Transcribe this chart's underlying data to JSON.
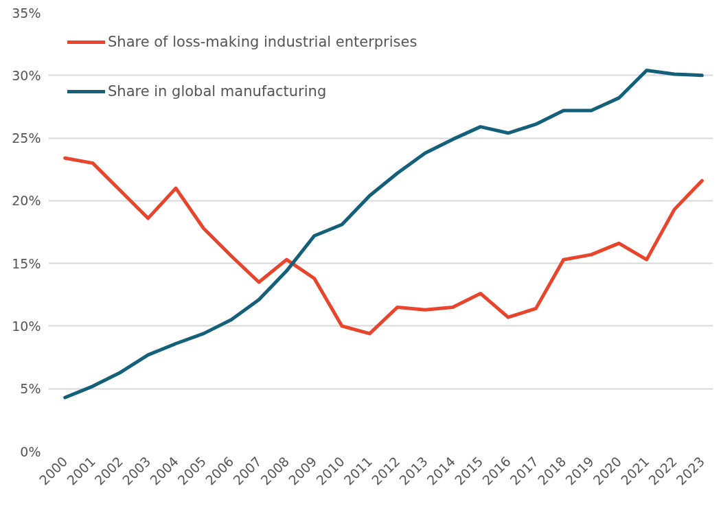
{
  "chart_data": {
    "type": "line",
    "categories": [
      "2000",
      "2001",
      "2002",
      "2003",
      "2004",
      "2005",
      "2006",
      "2007",
      "2008",
      "2009",
      "2010",
      "2011",
      "2012",
      "2013",
      "2014",
      "2015",
      "2016",
      "2017",
      "2018",
      "2019",
      "2020",
      "2021",
      "2022",
      "2023"
    ],
    "series": [
      {
        "name": "Share of loss-making industrial enterprises",
        "color": "#e8452c",
        "values": [
          23.4,
          23.0,
          20.8,
          18.6,
          21.0,
          17.8,
          15.6,
          13.5,
          15.3,
          13.8,
          10.0,
          9.4,
          11.5,
          11.3,
          11.5,
          12.6,
          10.7,
          11.4,
          15.3,
          15.7,
          16.6,
          15.3,
          19.3,
          21.6
        ]
      },
      {
        "name": "Share in global manufacturing",
        "color": "#14607a",
        "values": [
          4.3,
          5.2,
          6.3,
          7.7,
          8.6,
          9.4,
          10.5,
          12.1,
          14.4,
          17.2,
          18.1,
          20.4,
          22.2,
          23.8,
          24.9,
          25.9,
          25.4,
          26.1,
          27.2,
          27.2,
          28.2,
          30.4,
          30.1,
          30.0
        ]
      }
    ],
    "ylim": [
      0,
      35
    ],
    "yticks": [
      {
        "value": 0,
        "label": "0%"
      },
      {
        "value": 5,
        "label": "5%"
      },
      {
        "value": 10,
        "label": "10%"
      },
      {
        "value": 15,
        "label": "15%"
      },
      {
        "value": 20,
        "label": "20%"
      },
      {
        "value": 25,
        "label": "25%"
      },
      {
        "value": 30,
        "label": "30%"
      },
      {
        "value": 35,
        "label": "35%"
      }
    ],
    "grid": "y",
    "legend": "top left",
    "line_style": "solid",
    "marker": "none"
  }
}
